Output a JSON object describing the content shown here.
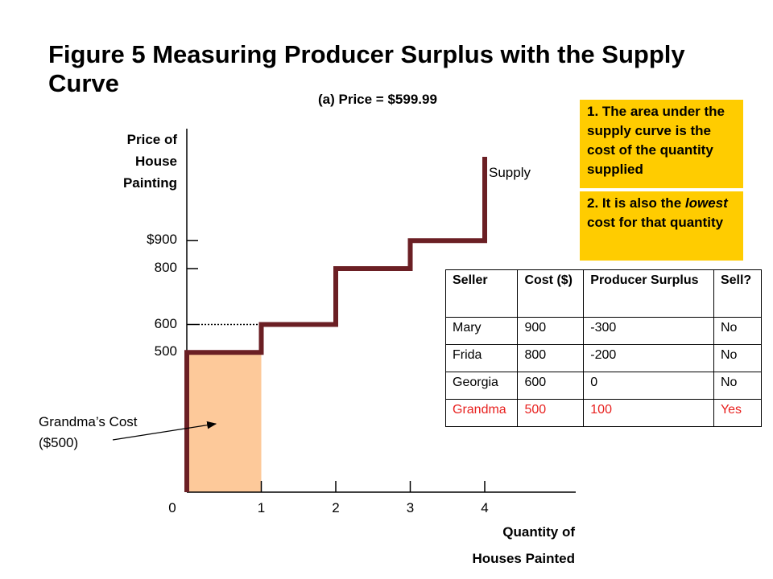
{
  "slide": {
    "title": "Figure 5 Measuring Producer Surplus with the Supply Curve",
    "subtitle": "(a) Price = $599.99"
  },
  "notes": [
    {
      "text": "1. The area under the supply curve is the cost of the quantity supplied"
    },
    {
      "prefix": "2. It is also the ",
      "emphasis": "lowest",
      "suffix": " cost for that quantity"
    }
  ],
  "annotations": {
    "supply": "Supply",
    "grandma_cost": [
      "Grandma’s Cost",
      "($500)"
    ]
  },
  "chart_data": {
    "type": "line",
    "title": "(a) Price = $599.99",
    "ylabel": [
      "Price of",
      "House",
      "Painting"
    ],
    "xlabel": [
      "Quantity of",
      "Houses Painted"
    ],
    "xlim": [
      0,
      5
    ],
    "ylim": [
      0,
      1300
    ],
    "x_ticks": [
      0,
      1,
      2,
      3,
      4
    ],
    "x_tick_labels": [
      "0",
      "1",
      "2",
      "3",
      "4"
    ],
    "y_ticks": [
      500,
      600,
      800,
      900
    ],
    "y_tick_labels": [
      "500",
      "600",
      "800",
      "$900"
    ],
    "price": 599.99,
    "series": [
      {
        "name": "Supply",
        "step": true,
        "x": [
          0,
          0,
          1,
          1,
          2,
          2,
          3,
          3,
          4,
          4
        ],
        "y": [
          0,
          500,
          500,
          600,
          600,
          800,
          800,
          900,
          900,
          1200
        ]
      }
    ],
    "shaded_area": {
      "x": [
        0,
        1
      ],
      "y": [
        0,
        500
      ]
    }
  },
  "table": {
    "headers": [
      "Seller",
      "Cost ($)",
      "Producer Surplus",
      "Sell?"
    ],
    "rows": [
      [
        "Mary",
        "900",
        "-300",
        "No"
      ],
      [
        "Frida",
        "800",
        "-200",
        "No"
      ],
      [
        "Georgia",
        "600",
        "0",
        "No"
      ],
      [
        "Grandma",
        "500",
        "100",
        "Yes"
      ]
    ],
    "highlight_row": 3,
    "highlight_color": "#e8211f"
  },
  "colors": {
    "supply_line": "#6b1f24",
    "shade": "#fdc99a",
    "note_bg": "#ffcc00",
    "axis": "#000000"
  }
}
